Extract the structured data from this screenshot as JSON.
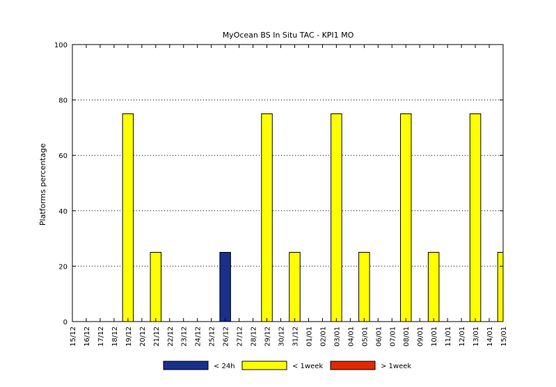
{
  "chart_data": {
    "type": "bar",
    "title": "MyOcean  BS In Situ TAC - KPI1  MO",
    "xlabel": "",
    "ylabel": "Platforms percentage",
    "ylim": [
      0,
      100
    ],
    "yticks": [
      0,
      20,
      40,
      60,
      80,
      100
    ],
    "grid": "y-dotted",
    "legend_position": "bottom",
    "categories": [
      "15/12",
      "16/12",
      "17/12",
      "18/12",
      "19/12",
      "20/12",
      "21/12",
      "22/12",
      "23/12",
      "24/12",
      "25/12",
      "26/12",
      "27/12",
      "28/12",
      "29/12",
      "30/12",
      "31/12",
      "01/01",
      "02/01",
      "03/01",
      "04/01",
      "05/01",
      "06/01",
      "07/01",
      "08/01",
      "09/01",
      "10/01",
      "11/01",
      "12/01",
      "13/01",
      "14/01",
      "15/01"
    ],
    "series": [
      {
        "name": "< 24h",
        "color": "#1a2f8a",
        "values": [
          0,
          0,
          0,
          0,
          0,
          0,
          0,
          0,
          0,
          0,
          0,
          25,
          0,
          0,
          0,
          0,
          0,
          0,
          0,
          0,
          0,
          0,
          0,
          0,
          0,
          0,
          0,
          0,
          0,
          0,
          0,
          0
        ]
      },
      {
        "name": "< 1week",
        "color": "#ffff00",
        "values": [
          0,
          0,
          0,
          0,
          75,
          0,
          25,
          0,
          0,
          0,
          0,
          0,
          0,
          0,
          75,
          0,
          25,
          0,
          0,
          75,
          0,
          25,
          0,
          0,
          75,
          0,
          25,
          0,
          0,
          75,
          0,
          25
        ]
      },
      {
        "name": "> 1week",
        "color": "#dd2a00",
        "values": [
          0,
          0,
          0,
          0,
          0,
          0,
          0,
          0,
          0,
          0,
          0,
          0,
          0,
          0,
          0,
          0,
          0,
          0,
          0,
          0,
          0,
          0,
          0,
          0,
          0,
          0,
          0,
          0,
          0,
          0,
          0,
          0
        ]
      }
    ]
  }
}
